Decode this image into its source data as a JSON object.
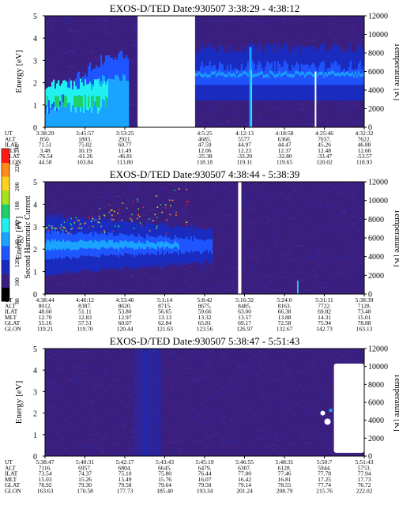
{
  "colors": {
    "background": "#3b1f7f",
    "bands": [
      "#000000",
      "#3b1f7f",
      "#1a2cbf",
      "#1f55ff",
      "#1aa3ff",
      "#21f0f0",
      "#1fcf6a",
      "#a8e022",
      "#ffd21f",
      "#ff8a1a",
      "#ff1a1a"
    ]
  },
  "colorbar": {
    "label": "Second Harmonic Current",
    "ticks": [
      "80",
      "100",
      "120",
      "140",
      "160",
      "180",
      "200",
      "220",
      "240"
    ]
  },
  "chart_data": [
    {
      "type": "heatmap",
      "title": "EXOS-D/TED   Date:930507  3:38:29 - 4:38:12",
      "ylabel": "Energy [eV]",
      "y2label": "Temperature [K]",
      "ylim": [
        0,
        5
      ],
      "y2lim": [
        0,
        12000
      ],
      "yticks": [
        "0",
        "1",
        "2",
        "3",
        "4",
        "5"
      ],
      "y2ticks": [
        "0",
        "2000",
        "4000",
        "6000",
        "8000",
        "10000",
        "12000"
      ],
      "gap": "data gap between 3:53:25 and 4:5:25",
      "rows": [
        {
          "label": "UT",
          "values": [
            "3:38:29",
            "3:45:57",
            "3:53:25",
            "",
            "4:5:25",
            "4:12:13",
            "4:18:58",
            "4:25:46",
            "4:32:32"
          ]
        },
        {
          "label": "ALT",
          "values": [
            "850.",
            "1803.",
            "2921.",
            "",
            "4685.",
            "5577.",
            "6360.",
            "7037.",
            "7622."
          ]
        },
        {
          "label": "ILAT",
          "values": [
            "71.51",
            "75.02",
            "60.77",
            "",
            "47.59",
            "44.97",
            "44.47",
            "45.26",
            "46.88"
          ]
        },
        {
          "label": "MLT",
          "values": [
            "3.48",
            "10.19",
            "11.49",
            "",
            "12.06",
            "12.23",
            "12.37",
            "12.48",
            "12.60"
          ]
        },
        {
          "label": "GLAT",
          "values": [
            "-76.54",
            "-61.26",
            "-46.81",
            "",
            "-35.38",
            "-33.20",
            "-32.80",
            "-33.47",
            "-53.57"
          ]
        },
        {
          "label": "GLON",
          "values": [
            "44.58",
            "103.84",
            "113.80",
            "",
            "118.18",
            "119.11",
            "119.65",
            "120.02",
            "118.93"
          ]
        }
      ]
    },
    {
      "type": "heatmap",
      "title": "EXOS-D/TED   Date:930507  4:38:44 - 5:38:39",
      "ylabel": "Energy [eV]",
      "y2label": "Temperature [K]",
      "ylim": [
        0,
        5
      ],
      "y2lim": [
        0,
        12000
      ],
      "yticks": [
        "0",
        "1",
        "2",
        "3",
        "4",
        "5"
      ],
      "y2ticks": [
        "0",
        "2000",
        "4000",
        "6000",
        "8000",
        "10000",
        "12000"
      ],
      "rows": [
        {
          "label": "UT",
          "values": [
            "4:38:44",
            "4:46:12",
            "4:53:46",
            "5:1:14",
            "5:8:42",
            "5:16:32",
            "5:24:0",
            "5:31:11",
            "5:38:39"
          ]
        },
        {
          "label": "ALT",
          "values": [
            "8012.",
            "8387.",
            "8620.",
            "8715.",
            "8675.",
            "8485.",
            "8163.",
            "7722.",
            "7128."
          ]
        },
        {
          "label": "ILAT",
          "values": [
            "48.60",
            "51.11",
            "53.80",
            "56.65",
            "59.66",
            "63.00",
            "66.38",
            "69.82",
            "73.48"
          ]
        },
        {
          "label": "MLT",
          "values": [
            "12.70",
            "12.83",
            "12.97",
            "13.13",
            "13.32",
            "13.57",
            "13.88",
            "14.31",
            "15.01"
          ]
        },
        {
          "label": "GLAT",
          "values": [
            "55.16",
            "57.51",
            "60.07",
            "62.84",
            "65.81",
            "69.17",
            "72.58",
            "75.94",
            "78.88"
          ]
        },
        {
          "label": "GLON",
          "values": [
            "119.21",
            "119.70",
            "120.44",
            "121.63",
            "123.56",
            "126.97",
            "132.67",
            "142.73",
            "163.13"
          ]
        }
      ]
    },
    {
      "type": "heatmap",
      "title": "EXOS-D/TED   Date:930507  5:38:47 - 5:51:43",
      "ylabel": "Energy [eV]",
      "y2label": "Temperature [K]",
      "ylim": [
        0,
        5
      ],
      "y2lim": [
        0,
        12000
      ],
      "yticks": [
        "0",
        "1",
        "2",
        "3",
        "4",
        "5"
      ],
      "y2ticks": [
        "0",
        "2000",
        "4000",
        "6000",
        "8000",
        "10000",
        "12000"
      ],
      "rows": [
        {
          "label": "UT",
          "values": [
            "5:38:47",
            "5:40:31",
            "5:42:17",
            "5:43:43",
            "5:45:19",
            "5:46:55",
            "5:48:31",
            "5:50:7",
            "5:51:43"
          ]
        },
        {
          "label": "ALT",
          "values": [
            "7116.",
            "6957.",
            "6804.",
            "6645.",
            "6479.",
            "6307.",
            "6128.",
            "5944.",
            "5753."
          ]
        },
        {
          "label": "ILAT",
          "values": [
            "73.54",
            "74.37",
            "75.10",
            "75.80",
            "76.44",
            "77.00",
            "77.46",
            "77.78",
            "77.94"
          ]
        },
        {
          "label": "MLT",
          "values": [
            "15.03",
            "15.26",
            "15.49",
            "15.76",
            "16.07",
            "16.42",
            "16.81",
            "17.25",
            "17.73"
          ]
        },
        {
          "label": "GLAT",
          "values": [
            "78.92",
            "79.30",
            "79.58",
            "79.64",
            "79.50",
            "79.14",
            "78.55",
            "77.74",
            "76.72"
          ]
        },
        {
          "label": "GLON",
          "values": [
            "163.63",
            "170.58",
            "177.73",
            "185.40",
            "193.34",
            "201.24",
            "208.79",
            "215.76",
            "222.02"
          ]
        }
      ]
    }
  ]
}
